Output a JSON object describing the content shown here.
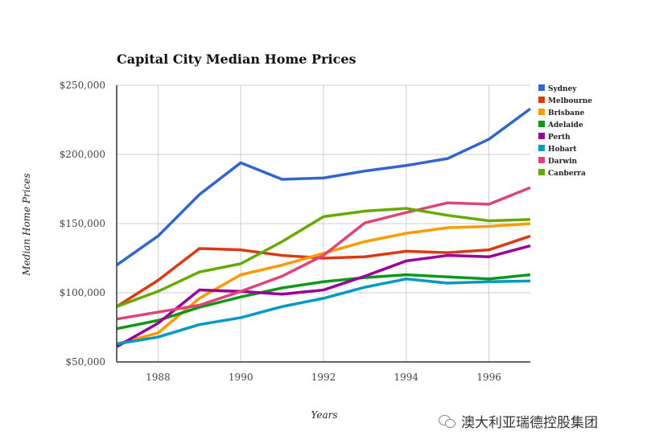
{
  "chart_data": {
    "type": "line",
    "title": "Capital City Median Home Prices",
    "xlabel": "Years",
    "ylabel": "Median Home Prices",
    "x": [
      1987,
      1988,
      1989,
      1990,
      1991,
      1992,
      1993,
      1994,
      1995,
      1996,
      1997
    ],
    "xlim": [
      1987,
      1997
    ],
    "xticks": [
      1988,
      1990,
      1992,
      1994,
      1996
    ],
    "xtick_labels": [
      "1988",
      "1990",
      "1992",
      "1994",
      "1996"
    ],
    "ylim": [
      50000,
      250000
    ],
    "yticks": [
      50000,
      100000,
      150000,
      200000,
      250000
    ],
    "ytick_labels": [
      "$50,000",
      "$100,000",
      "$150,000",
      "$200,000",
      "$250,000"
    ],
    "grid": true,
    "legend_position": "right",
    "series": [
      {
        "name": "Sydney",
        "color": "#3366cc",
        "values": [
          120000,
          141000,
          171000,
          194000,
          182000,
          183000,
          188000,
          192000,
          197000,
          211000,
          233000
        ]
      },
      {
        "name": "Melbourne",
        "color": "#dc3912",
        "values": [
          90000,
          109000,
          132000,
          131000,
          127000,
          125000,
          126000,
          130000,
          129000,
          131000,
          141000
        ]
      },
      {
        "name": "Brisbane",
        "color": "#ff9900",
        "values": [
          63000,
          71000,
          96000,
          113000,
          120000,
          128500,
          137000,
          143000,
          147000,
          148000,
          150000
        ]
      },
      {
        "name": "Adelaide",
        "color": "#109618",
        "values": [
          74000,
          80000,
          89500,
          97000,
          103500,
          108000,
          111000,
          113000,
          111500,
          110000,
          113000
        ]
      },
      {
        "name": "Perth",
        "color": "#990099",
        "values": [
          61000,
          78000,
          102000,
          101000,
          99000,
          102000,
          112000,
          123000,
          127000,
          126000,
          134000
        ]
      },
      {
        "name": "Hobart",
        "color": "#0099c6",
        "values": [
          63000,
          68000,
          77000,
          82000,
          90000,
          96000,
          104000,
          110000,
          107000,
          108000,
          108500
        ]
      },
      {
        "name": "Darwin",
        "color": "#dd4477",
        "values": [
          81000,
          86000,
          91000,
          101000,
          112000,
          127000,
          150500,
          158000,
          165000,
          164000,
          176000
        ]
      },
      {
        "name": "Canberra",
        "color": "#66aa00",
        "values": [
          90000,
          101000,
          115000,
          121000,
          137000,
          155000,
          159000,
          161000,
          156000,
          152000,
          153000
        ]
      }
    ]
  },
  "watermark": {
    "text": "澳大利亚瑞德控股集团"
  }
}
